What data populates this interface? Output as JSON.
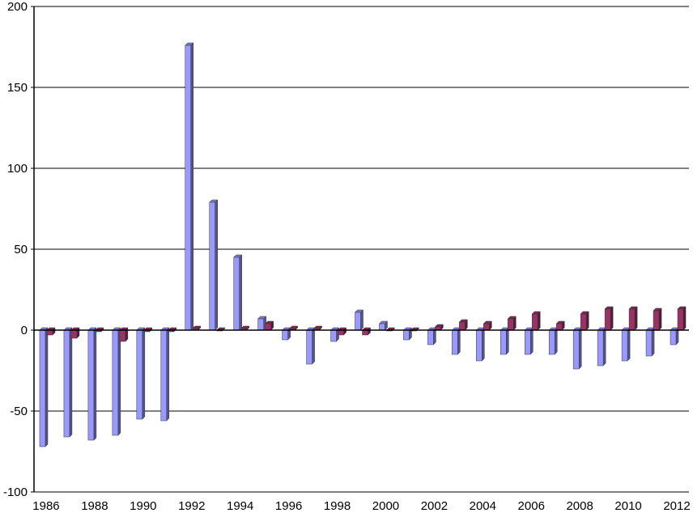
{
  "chart_data": {
    "type": "bar",
    "title": "",
    "xlabel": "",
    "ylabel": "",
    "ylim": [
      -100,
      200
    ],
    "yticks": [
      -100,
      -50,
      0,
      50,
      100,
      150,
      200
    ],
    "ytick_labels": [
      "-100",
      "-50",
      "0",
      "50",
      "100",
      "150",
      "200"
    ],
    "grid": "horizontal",
    "legend": "none",
    "categories": [
      "1986",
      "1987",
      "1988",
      "1989",
      "1990",
      "1991",
      "1992",
      "1993",
      "1994",
      "1995",
      "1996",
      "1997",
      "1998",
      "1999",
      "2000",
      "2001",
      "2002",
      "2003",
      "2004",
      "2005",
      "2006",
      "2007",
      "2008",
      "2009",
      "2010",
      "2011",
      "2012"
    ],
    "xtick_labels": [
      "1986",
      "1988",
      "1990",
      "1992",
      "1994",
      "1996",
      "1998",
      "2000",
      "2002",
      "2004",
      "2006",
      "2008",
      "2010",
      "2012"
    ],
    "series": [
      {
        "color": "#9999ff",
        "values": [
          -72,
          -66,
          -68,
          -65,
          -55,
          -56,
          176,
          79,
          45,
          7,
          -6,
          -21,
          -7,
          11,
          4,
          -6,
          -9,
          -15,
          -19,
          -15,
          -15,
          -15,
          -24,
          -22,
          -19,
          -16,
          -9
        ]
      },
      {
        "color": "#993366",
        "values": [
          -3,
          -5,
          -1,
          -7,
          -1,
          -1,
          1,
          0,
          1,
          4,
          1,
          1,
          -3,
          -3,
          0,
          0,
          2,
          5,
          4,
          7,
          10,
          4,
          10,
          13,
          13,
          12,
          13
        ]
      }
    ]
  }
}
